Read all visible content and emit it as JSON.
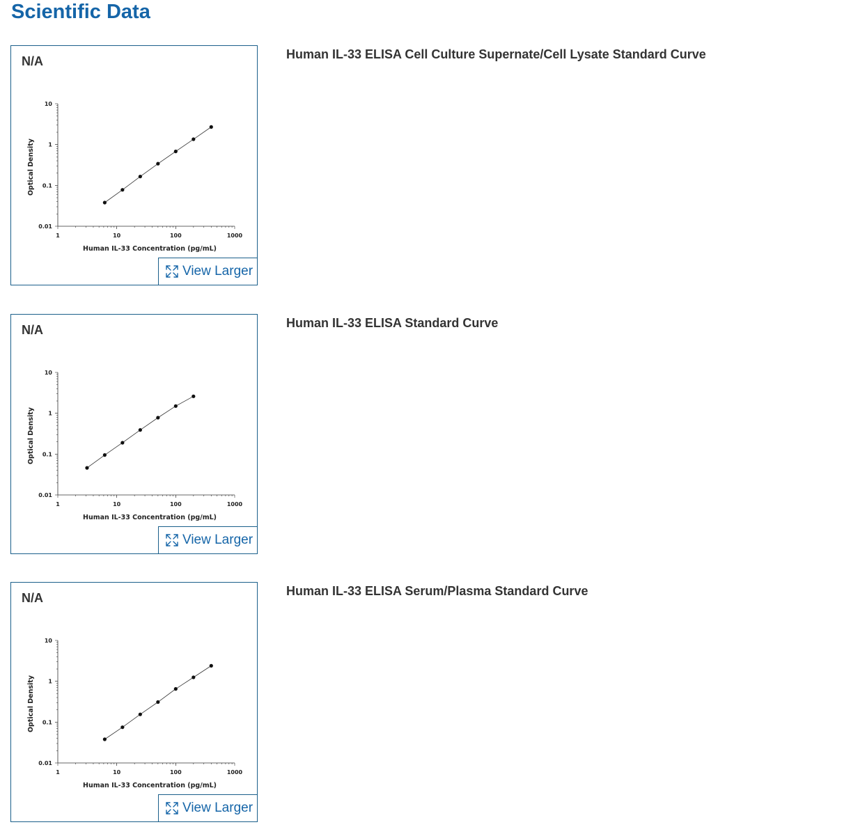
{
  "page": {
    "title": "Scientific Data",
    "view_larger_label": "View Larger",
    "primary_color": "#1565a8",
    "border_color": "#1a5f8a"
  },
  "items": [
    {
      "label": "N/A",
      "caption": "Human IL-33 ELISA Cell Culture Supernate/Cell Lysate Standard Curve",
      "chart_data": {
        "type": "line",
        "xlabel": "Human IL-33 Concentration (pg/mL)",
        "ylabel": "Optical Density",
        "xscale": "log",
        "yscale": "log",
        "xlim": [
          1,
          1000
        ],
        "ylim": [
          0.01,
          10
        ],
        "xticks": [
          "1",
          "10",
          "100",
          "1000"
        ],
        "yticks": [
          "0.01",
          "0.1",
          "1",
          "10"
        ],
        "x": [
          6.25,
          12.5,
          25,
          50,
          100,
          200,
          400
        ],
        "y": [
          0.038,
          0.078,
          0.165,
          0.34,
          0.68,
          1.35,
          2.7
        ],
        "grid": false,
        "markers": true
      }
    },
    {
      "label": "N/A",
      "caption": "Human IL-33 ELISA Standard Curve",
      "chart_data": {
        "type": "line",
        "xlabel": "Human IL-33 Concentration (pg/mL)",
        "ylabel": "Optical Density",
        "xscale": "log",
        "yscale": "log",
        "xlim": [
          1,
          1000
        ],
        "ylim": [
          0.01,
          10
        ],
        "xticks": [
          "1",
          "10",
          "100",
          "1000"
        ],
        "yticks": [
          "0.01",
          "0.1",
          "1",
          "10"
        ],
        "x": [
          3.13,
          6.25,
          12.5,
          25,
          50,
          100,
          200
        ],
        "y": [
          0.046,
          0.095,
          0.19,
          0.39,
          0.78,
          1.5,
          2.6
        ],
        "grid": false,
        "markers": true
      }
    },
    {
      "label": "N/A",
      "caption": "Human IL-33 ELISA Serum/Plasma Standard Curve",
      "chart_data": {
        "type": "line",
        "xlabel": "Human IL-33 Concentration (pg/mL)",
        "ylabel": "Optical Density",
        "xscale": "log",
        "yscale": "log",
        "xlim": [
          1,
          1000
        ],
        "ylim": [
          0.01,
          10
        ],
        "xticks": [
          "1",
          "10",
          "100",
          "1000"
        ],
        "yticks": [
          "0.01",
          "0.1",
          "1",
          "10"
        ],
        "x": [
          6.25,
          12.5,
          25,
          50,
          100,
          200,
          400
        ],
        "y": [
          0.038,
          0.075,
          0.155,
          0.31,
          0.65,
          1.25,
          2.4
        ],
        "grid": false,
        "markers": true
      }
    }
  ]
}
